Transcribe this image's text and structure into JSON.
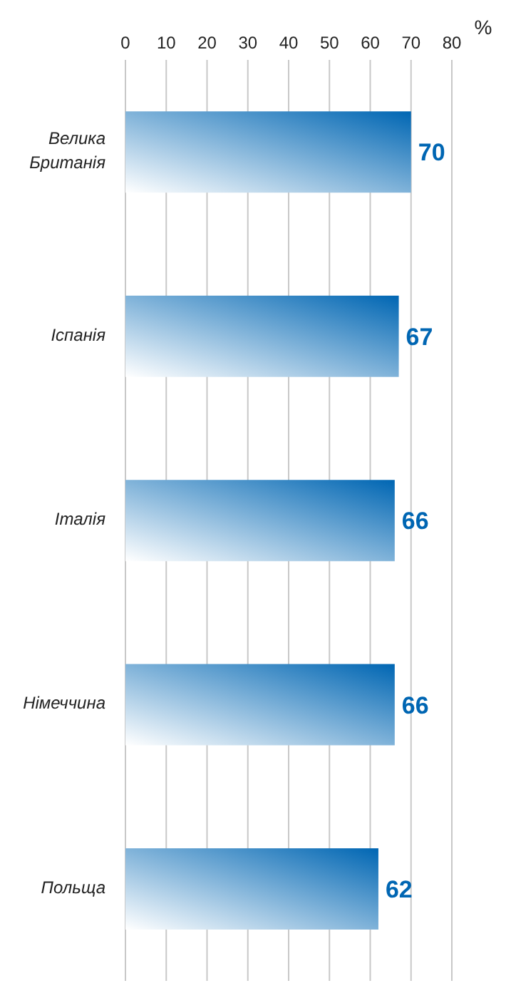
{
  "chart_data": {
    "type": "bar",
    "orientation": "horizontal",
    "xlabel": "%",
    "categories": [
      "Велика Британія",
      "Іспанія",
      "Італія",
      "Німеччина",
      "Польща"
    ],
    "values": [
      70,
      67,
      66,
      66,
      62
    ],
    "color": "#0066b3",
    "xlim": [
      0,
      80
    ],
    "xticks": [
      0,
      10,
      20,
      30,
      40,
      50,
      60,
      70,
      80
    ],
    "grid": "x",
    "data_labels": true
  }
}
